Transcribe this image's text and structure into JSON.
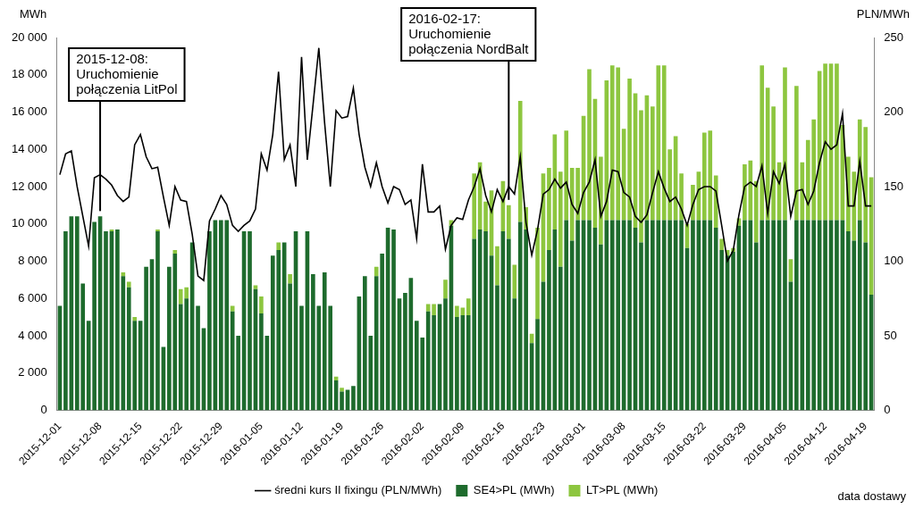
{
  "chart_data": {
    "type": "bar",
    "stacked": true,
    "grid": false,
    "legend": "bottom",
    "y_label": "MWh",
    "y2_label": "PLN/MWh",
    "x_label": "data dostawy",
    "annotations": [
      {
        "text": [
          "2015-12-08:",
          "Uruchomienie",
          "połączenia LitPol"
        ]
      },
      {
        "text": [
          "2016-02-17:",
          "Uruchomienie",
          "połączenia NordBalt"
        ]
      }
    ],
    "categories": [
      "2015-12-01",
      null,
      null,
      null,
      null,
      null,
      null,
      "2015-12-08",
      null,
      null,
      null,
      null,
      null,
      null,
      "2015-12-15",
      null,
      null,
      null,
      null,
      null,
      null,
      "2015-12-22",
      null,
      null,
      null,
      null,
      null,
      null,
      "2015-12-29",
      null,
      null,
      null,
      null,
      null,
      null,
      "2016-01-05",
      null,
      null,
      null,
      null,
      null,
      null,
      "2016-01-12",
      null,
      null,
      null,
      null,
      null,
      null,
      "2016-01-19",
      null,
      null,
      null,
      null,
      null,
      null,
      "2016-01-26",
      null,
      null,
      null,
      null,
      null,
      null,
      "2016-02-02",
      null,
      null,
      null,
      null,
      null,
      null,
      "2016-02-09",
      null,
      null,
      null,
      null,
      null,
      null,
      "2016-02-16",
      null,
      null,
      null,
      null,
      null,
      null,
      "2016-02-23",
      null,
      null,
      null,
      null,
      null,
      null,
      "2016-03-01",
      null,
      null,
      null,
      null,
      null,
      null,
      "2016-03-08",
      null,
      null,
      null,
      null,
      null,
      null,
      "2016-03-15",
      null,
      null,
      null,
      null,
      null,
      null,
      "2016-03-22",
      null,
      null,
      null,
      null,
      null,
      null,
      "2016-03-29",
      null,
      null,
      null,
      null,
      null,
      null,
      "2016-04-05",
      null,
      null,
      null,
      null,
      null,
      null,
      "2016-04-12",
      null,
      null,
      null,
      null,
      null,
      null,
      "2016-04-19",
      null
    ],
    "series": [
      {
        "name": "SE4>PL (MWh)",
        "type": "bar",
        "color": "#1e6b2d",
        "values": [
          5600,
          9600,
          10400,
          10400,
          6800,
          4800,
          10100,
          10400,
          9600,
          9600,
          9700,
          7200,
          6600,
          4800,
          4800,
          7700,
          8100,
          9600,
          3400,
          7700,
          8400,
          5700,
          6000,
          9000,
          5600,
          4400,
          9600,
          10200,
          10200,
          10200,
          5300,
          4000,
          9600,
          9600,
          6500,
          5200,
          4000,
          8300,
          8600,
          9000,
          6800,
          9600,
          5600,
          9600,
          7300,
          5600,
          7400,
          5600,
          1600,
          1000,
          1100,
          1300,
          6100,
          7200,
          4000,
          7200,
          8400,
          9800,
          9700,
          6000,
          6300,
          7100,
          4800,
          3900,
          5300,
          5100,
          5700,
          6000,
          9900,
          5000,
          5100,
          5100,
          9200,
          9700,
          9600,
          8300,
          6700,
          9600,
          9200,
          6000,
          10100,
          9700,
          3600,
          4900,
          6900,
          8600,
          9700,
          7700,
          10200,
          9100,
          10200,
          10200,
          10200,
          9800,
          8900,
          10200,
          10200,
          10200,
          10200,
          10200,
          9800,
          9000,
          10200,
          10200,
          10200,
          10200,
          10200,
          10200,
          10200,
          8700,
          10200,
          10200,
          10200,
          10200,
          9800,
          8600,
          8300,
          8500,
          9900,
          10200,
          10200,
          9000,
          10200,
          10200,
          10200,
          10200,
          10200,
          6900,
          10200,
          10200,
          10200,
          10200,
          10200,
          10200,
          10200,
          10200,
          10200,
          9600,
          9100,
          10200,
          9000,
          6200
        ]
      },
      {
        "name": "LT>PL (MWh)",
        "type": "bar",
        "color": "#8dc63f",
        "values": [
          0,
          0,
          0,
          0,
          0,
          0,
          0,
          0,
          0,
          100,
          0,
          200,
          300,
          200,
          0,
          0,
          0,
          100,
          0,
          0,
          200,
          800,
          600,
          0,
          0,
          0,
          0,
          0,
          0,
          0,
          300,
          0,
          0,
          0,
          200,
          900,
          0,
          0,
          400,
          0,
          500,
          0,
          0,
          0,
          0,
          0,
          0,
          0,
          200,
          200,
          0,
          0,
          0,
          0,
          0,
          500,
          0,
          0,
          0,
          0,
          0,
          0,
          0,
          0,
          400,
          600,
          0,
          1000,
          300,
          600,
          400,
          900,
          3500,
          3600,
          1600,
          3500,
          2100,
          2700,
          1800,
          1800,
          6500,
          1200,
          500,
          4900,
          5800,
          4400,
          5100,
          5100,
          4800,
          3900,
          2800,
          5600,
          8100,
          6900,
          4700,
          7500,
          8300,
          8200,
          4900,
          7600,
          7200,
          7100,
          6700,
          6100,
          8300,
          8300,
          3800,
          4500,
          2500,
          1300,
          1900,
          2600,
          4700,
          4800,
          2800,
          600,
          300,
          200,
          400,
          3000,
          3200,
          3300,
          8300,
          7100,
          6100,
          3100,
          8200,
          1200,
          7200,
          3100,
          4300,
          5400,
          8000,
          8400,
          8400,
          8400,
          5100,
          4000,
          3700,
          5400,
          6200,
          6300
        ]
      },
      {
        "name": "średni kurs II fixingu (PLN/MWh)",
        "type": "line",
        "axis": "y2",
        "color": "#000000",
        "values": [
          158,
          172,
          174,
          150,
          130,
          110,
          156,
          158,
          155,
          151,
          144,
          140,
          143,
          178,
          185,
          170,
          162,
          163,
          143,
          124,
          150,
          141,
          140,
          118,
          90,
          87,
          127,
          135,
          144,
          138,
          124,
          120,
          124,
          127,
          135,
          172,
          161,
          185,
          227,
          168,
          178,
          150,
          237,
          168,
          205,
          243,
          193,
          150,
          201,
          196,
          197,
          216,
          185,
          163,
          150,
          166,
          150,
          139,
          150,
          148,
          138,
          141,
          115,
          165,
          133,
          133,
          137,
          108,
          124,
          129,
          128,
          141,
          150,
          162,
          144,
          133,
          148,
          140,
          150,
          145,
          170,
          126,
          104,
          121,
          145,
          148,
          155,
          149,
          153,
          138,
          132,
          146,
          153,
          168,
          130,
          140,
          161,
          160,
          146,
          143,
          130,
          126,
          131,
          146,
          160,
          149,
          140,
          143,
          135,
          124,
          138,
          148,
          150,
          150,
          147,
          124,
          100,
          107,
          131,
          150,
          153,
          150,
          164,
          132,
          160,
          152,
          165,
          130,
          147,
          148,
          138,
          147,
          166,
          180,
          175,
          178,
          199,
          137,
          137,
          167,
          137,
          137
        ]
      }
    ],
    "ylim": [
      0,
      20000
    ],
    "yticks": [
      0,
      {
        "value": 2000,
        "label": "2 000"
      },
      {
        "value": 4000,
        "label": "4 000"
      },
      {
        "value": 6000,
        "label": "6 000"
      },
      {
        "value": 8000,
        "label": "8 000"
      },
      {
        "value": 10000,
        "label": "10 000"
      },
      {
        "value": 12000,
        "label": "12 000"
      },
      {
        "value": 14000,
        "label": "14 000"
      },
      {
        "value": 16000,
        "label": "16 000"
      },
      {
        "value": 18000,
        "label": "18 000"
      },
      {
        "value": 20000,
        "label": "20 000"
      }
    ],
    "y2lim": [
      0,
      250
    ],
    "y2ticks": [
      0,
      50,
      100,
      150,
      200,
      250
    ]
  }
}
